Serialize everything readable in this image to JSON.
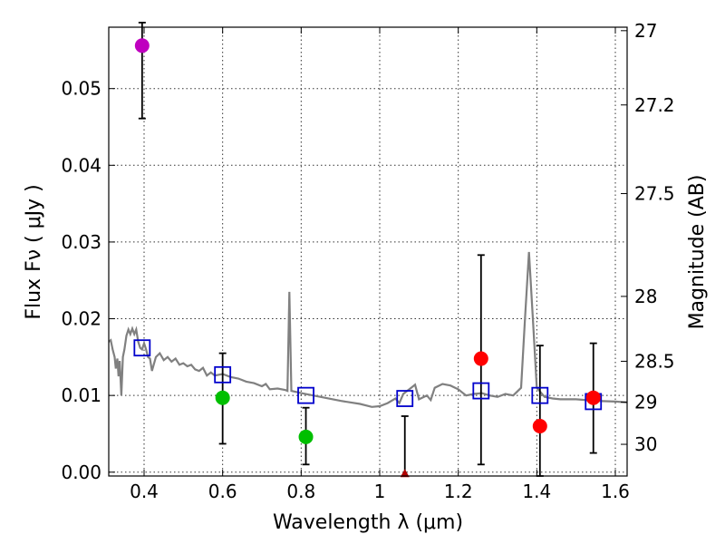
{
  "chart_data": {
    "type": "scatter",
    "xlabel": "Wavelength  λ (μm)",
    "ylabel": "Flux  Fν  ( μJy )",
    "y2label": "Magnitude (AB)",
    "xlim": [
      0.31,
      1.63
    ],
    "ylim": [
      -0.0005,
      0.058
    ],
    "x_ticks": [
      0.4,
      0.6,
      0.8,
      1.0,
      1.2,
      1.4,
      1.6
    ],
    "x_tick_labels": [
      "0.4",
      "0.6",
      "0.8",
      "1",
      "1.2",
      "1.4",
      "1.6"
    ],
    "y_ticks": [
      0.0,
      0.01,
      0.02,
      0.03,
      0.04,
      0.05
    ],
    "y_tick_labels": [
      "0.00",
      "0.01",
      "0.02",
      "0.03",
      "0.04",
      "0.05"
    ],
    "mag_ticks": [
      {
        "value": 27,
        "label": "27"
      },
      {
        "value": 27.2,
        "label": "27.2"
      },
      {
        "value": 27.5,
        "label": "27.5"
      },
      {
        "value": 28,
        "label": "28"
      },
      {
        "value": 28.5,
        "label": "28.5"
      },
      {
        "value": 29,
        "label": "29"
      },
      {
        "value": 30,
        "label": "30"
      }
    ],
    "grid": true,
    "colors": {
      "model": "#808080",
      "purple": "#bf00bf",
      "green": "#00bf00",
      "red": "#ff0000",
      "darkred": "#b30000",
      "blue": "#0000cc",
      "errorbar": "#000000"
    },
    "model_spectrum": [
      [
        0.31,
        0.017
      ],
      [
        0.315,
        0.0172
      ],
      [
        0.32,
        0.016
      ],
      [
        0.325,
        0.015
      ],
      [
        0.328,
        0.0135
      ],
      [
        0.332,
        0.0148
      ],
      [
        0.335,
        0.0125
      ],
      [
        0.338,
        0.0145
      ],
      [
        0.342,
        0.01
      ],
      [
        0.346,
        0.015
      ],
      [
        0.35,
        0.016
      ],
      [
        0.355,
        0.0178
      ],
      [
        0.36,
        0.0186
      ],
      [
        0.365,
        0.018
      ],
      [
        0.37,
        0.0187
      ],
      [
        0.375,
        0.018
      ],
      [
        0.38,
        0.0186
      ],
      [
        0.385,
        0.017
      ],
      [
        0.39,
        0.0162
      ],
      [
        0.395,
        0.016
      ],
      [
        0.4,
        0.0168
      ],
      [
        0.405,
        0.016
      ],
      [
        0.41,
        0.015
      ],
      [
        0.415,
        0.0148
      ],
      [
        0.42,
        0.0132
      ],
      [
        0.43,
        0.015
      ],
      [
        0.44,
        0.0155
      ],
      [
        0.45,
        0.0146
      ],
      [
        0.46,
        0.015
      ],
      [
        0.47,
        0.0144
      ],
      [
        0.48,
        0.0148
      ],
      [
        0.49,
        0.014
      ],
      [
        0.5,
        0.0142
      ],
      [
        0.51,
        0.0138
      ],
      [
        0.52,
        0.014
      ],
      [
        0.53,
        0.0134
      ],
      [
        0.54,
        0.0132
      ],
      [
        0.55,
        0.0136
      ],
      [
        0.56,
        0.0126
      ],
      [
        0.57,
        0.013
      ],
      [
        0.58,
        0.0126
      ],
      [
        0.6,
        0.0128
      ],
      [
        0.62,
        0.0124
      ],
      [
        0.64,
        0.0122
      ],
      [
        0.66,
        0.0118
      ],
      [
        0.68,
        0.0116
      ],
      [
        0.7,
        0.0112
      ],
      [
        0.71,
        0.0115
      ],
      [
        0.72,
        0.0108
      ],
      [
        0.74,
        0.0109
      ],
      [
        0.76,
        0.0107
      ],
      [
        0.765,
        0.0106
      ],
      [
        0.77,
        0.0235
      ],
      [
        0.775,
        0.0106
      ],
      [
        0.8,
        0.0103
      ],
      [
        0.85,
        0.0098
      ],
      [
        0.9,
        0.0093
      ],
      [
        0.95,
        0.0089
      ],
      [
        0.98,
        0.0085
      ],
      [
        1.0,
        0.0086
      ],
      [
        1.02,
        0.009
      ],
      [
        1.04,
        0.0096
      ],
      [
        1.05,
        0.009
      ],
      [
        1.06,
        0.0102
      ],
      [
        1.08,
        0.011
      ],
      [
        1.09,
        0.0114
      ],
      [
        1.1,
        0.0095
      ],
      [
        1.12,
        0.01
      ],
      [
        1.13,
        0.0094
      ],
      [
        1.14,
        0.011
      ],
      [
        1.16,
        0.0115
      ],
      [
        1.18,
        0.0113
      ],
      [
        1.2,
        0.0108
      ],
      [
        1.22,
        0.01
      ],
      [
        1.24,
        0.0102
      ],
      [
        1.26,
        0.0103
      ],
      [
        1.28,
        0.01
      ],
      [
        1.3,
        0.0098
      ],
      [
        1.32,
        0.0102
      ],
      [
        1.34,
        0.01
      ],
      [
        1.36,
        0.011
      ],
      [
        1.37,
        0.02
      ],
      [
        1.38,
        0.0287
      ],
      [
        1.39,
        0.02
      ],
      [
        1.4,
        0.011
      ],
      [
        1.42,
        0.0098
      ],
      [
        1.44,
        0.0096
      ],
      [
        1.46,
        0.0095
      ],
      [
        1.5,
        0.0095
      ],
      [
        1.55,
        0.0093
      ],
      [
        1.6,
        0.0092
      ],
      [
        1.63,
        0.0091
      ]
    ],
    "observed_points": [
      {
        "x": 0.395,
        "y": 0.0556,
        "err_low": 0.0095,
        "err_high": 0.003,
        "color": "purple"
      },
      {
        "x": 0.6,
        "y": 0.0097,
        "err_low": 0.006,
        "err_high": 0.0058,
        "color": "green"
      },
      {
        "x": 0.812,
        "y": 0.0046,
        "err_low": 0.0036,
        "err_high": 0.0038,
        "color": "green"
      },
      {
        "x": 1.064,
        "y": -0.0003,
        "err_low": 0.0,
        "err_high": 0.0076,
        "color": "darkred",
        "marker": "triangle"
      },
      {
        "x": 1.258,
        "y": 0.0148,
        "err_low": 0.0138,
        "err_high": 0.0135,
        "color": "red"
      },
      {
        "x": 1.408,
        "y": 0.006,
        "err_low": 0.0065,
        "err_high": 0.0105,
        "color": "red"
      },
      {
        "x": 1.544,
        "y": 0.0097,
        "err_low": 0.0072,
        "err_high": 0.0071,
        "color": "red"
      }
    ],
    "model_points": [
      {
        "x": 0.395,
        "y": 0.0162
      },
      {
        "x": 0.6,
        "y": 0.0127
      },
      {
        "x": 0.812,
        "y": 0.01
      },
      {
        "x": 1.064,
        "y": 0.0096
      },
      {
        "x": 1.258,
        "y": 0.0106
      },
      {
        "x": 1.408,
        "y": 0.01
      },
      {
        "x": 1.544,
        "y": 0.0092
      }
    ]
  }
}
